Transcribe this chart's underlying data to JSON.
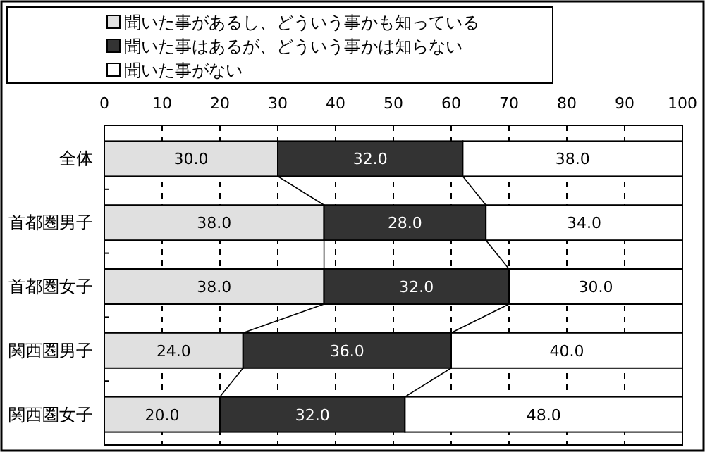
{
  "chart_data": {
    "type": "bar",
    "orientation": "horizontal",
    "stacked": true,
    "categories": [
      "全体",
      "首都圏男子",
      "首都圏女子",
      "関西圏男子",
      "関西圏女子"
    ],
    "series": [
      {
        "name": "聞いた事があるし、どういう事かも知っている",
        "color": "#e0e0e0",
        "values": [
          30,
          38,
          38,
          24,
          20
        ],
        "value_labels": [
          "30.0",
          "38.0",
          "38.0",
          "24.0",
          "20.0"
        ]
      },
      {
        "name": "聞いた事はあるが、どういう事かは知らない",
        "color": "#333333",
        "values": [
          32,
          28,
          32,
          36,
          32
        ],
        "value_labels": [
          "32.0",
          "28.0",
          "32.0",
          "36.0",
          "32.0"
        ]
      },
      {
        "name": "聞いた事がない",
        "color": "#ffffff",
        "values": [
          38,
          34,
          30,
          40,
          48
        ],
        "value_labels": [
          "38.0",
          "34.0",
          "30.0",
          "40.0",
          "48.0"
        ]
      }
    ],
    "xlim": [
      0,
      100
    ],
    "xticks": [
      0,
      10,
      20,
      30,
      40,
      50,
      60,
      70,
      80,
      90,
      100
    ],
    "grid": "x",
    "legend": "top left"
  }
}
